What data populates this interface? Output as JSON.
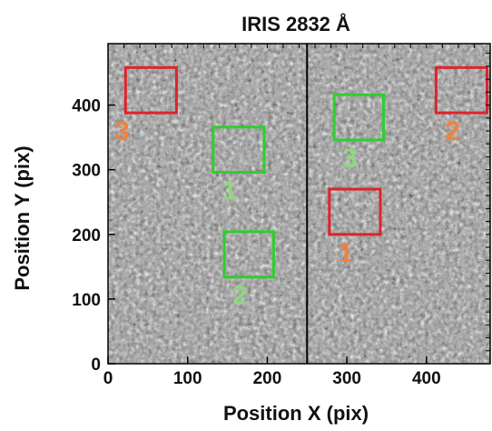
{
  "chart_data": {
    "type": "image",
    "title": "IRIS 2832 Å",
    "xlabel": "Position X (pix)",
    "ylabel": "Position Y (pix)",
    "xlim": [
      0,
      480
    ],
    "ylim": [
      0,
      495
    ],
    "xticks": [
      0,
      100,
      200,
      300,
      400
    ],
    "yticks": [
      0,
      100,
      200,
      300,
      400
    ],
    "slit_x": 250,
    "colors": {
      "red": "#e0232a",
      "green": "#2dcf2d",
      "orange": "#f0823c",
      "light_green": "#8fd87f"
    },
    "boxes": [
      {
        "label": "3",
        "color": "red",
        "x0": 22,
        "x1": 86,
        "y0": 388,
        "y1": 458
      },
      {
        "label": "2",
        "color": "red",
        "x0": 412,
        "x1": 476,
        "y0": 388,
        "y1": 458
      },
      {
        "label": "1",
        "color": "red",
        "x0": 278,
        "x1": 342,
        "y0": 200,
        "y1": 270
      },
      {
        "label": "1",
        "color": "green",
        "x0": 132,
        "x1": 196,
        "y0": 296,
        "y1": 366
      },
      {
        "label": "2",
        "color": "green",
        "x0": 146,
        "x1": 208,
        "y0": 134,
        "y1": 204
      },
      {
        "label": "3",
        "color": "green",
        "x0": 284,
        "x1": 346,
        "y0": 346,
        "y1": 416
      }
    ]
  }
}
